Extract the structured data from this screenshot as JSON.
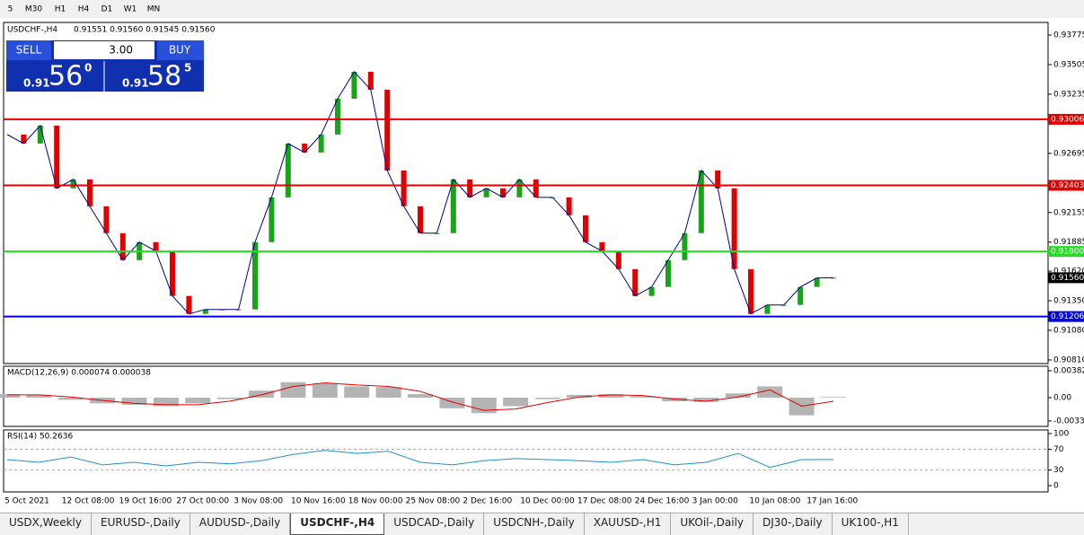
{
  "timeframes": [
    "5",
    "M30",
    "H1",
    "H4",
    "D1",
    "W1",
    "MN"
  ],
  "header": {
    "symbol": "USDCHF-,H4",
    "ohlc": "0.91551 0.91560 0.91545 0.91560"
  },
  "trade_panel": {
    "sell": "SELL",
    "buy": "BUY",
    "volume": "3.00",
    "sell_big": "0.91",
    "sell_main": "56",
    "sell_frac": "0",
    "buy_big": "0.91",
    "buy_main": "58",
    "buy_frac": "5"
  },
  "price_chart": {
    "type": "candlestick-line",
    "ylim": [
      0.90777,
      0.9389
    ],
    "yticks": [
      0.93775,
      0.93505,
      0.93235,
      0.92695,
      0.92155,
      0.91885,
      {
        "value": 0.9162,
        "label": "0.91620"
      },
      {
        "value": 0.9135,
        "label": "0.91350"
      },
      {
        "value": 0.9108,
        "label": "0.91080"
      },
      {
        "value": 0.9081,
        "label": "0.90810"
      }
    ],
    "close": [
      0.92867,
      0.92785,
      0.92949,
      0.92376,
      0.92458,
      0.92212,
      0.91967,
      0.91721,
      0.91885,
      0.91803,
      0.91394,
      0.9123,
      0.91271,
      0.91271,
      0.91271,
      0.91885,
      0.92294,
      0.92785,
      0.92703,
      0.92867,
      0.93194,
      0.9344,
      0.93276,
      0.92539,
      0.92212,
      0.91967,
      0.91967,
      0.92458,
      0.92294,
      0.92376,
      0.92294,
      0.92458,
      0.92294,
      0.92294,
      0.9213,
      0.91885,
      0.91803,
      0.91639,
      0.91394,
      0.91476,
      0.91721,
      0.91967,
      0.92539,
      0.92376,
      0.91639,
      0.9123,
      0.91312,
      0.91312,
      0.91476,
      0.91558,
      0.9156
    ],
    "up_color": "#19a319",
    "down_color": "#e00000",
    "levels": [
      {
        "value": 0.93006,
        "label": "0.93006",
        "color": "#e00000"
      },
      {
        "value": 0.92403,
        "label": "0.92403",
        "color": "#e00000"
      },
      {
        "value": 0.918,
        "label": "0.91800",
        "color": "#22dd22"
      },
      {
        "value": 0.91206,
        "label": "0.91206",
        "color": "#0000e0"
      }
    ],
    "current": {
      "value": 0.9156,
      "label": "0.91560"
    },
    "xlabels": [
      "5 Oct 2021",
      "12 Oct 08:00",
      "19 Oct 16:00",
      "27 Oct 00:00",
      "3 Nov 08:00",
      "10 Nov 16:00",
      "18 Nov 00:00",
      "25 Nov 08:00",
      "2 Dec 16:00",
      "10 Dec 00:00",
      "17 Dec 08:00",
      "24 Dec 16:00",
      "3 Jan 00:00",
      "10 Jan 08:00",
      "17 Jan 16:00"
    ]
  },
  "macd": {
    "title": "MACD(12,26,9) 0.000074 0.000038",
    "ylim": [
      -0.00407,
      0.00446
    ],
    "yticks": [
      0.00382,
      {
        "value": 0,
        "label": "0.00"
      },
      -0.0033
    ],
    "histogram": [
      0.0005,
      0.0004,
      -0.0003,
      -0.0008,
      -0.001,
      -0.0012,
      -0.0008,
      -0.0002,
      0.001,
      0.0022,
      0.002,
      0.0016,
      0.0015,
      0.0005,
      -0.0015,
      -0.0022,
      -0.0012,
      -0.0002,
      0.0004,
      0.0005,
      0.0002,
      -0.0005,
      -0.0006,
      0.0006,
      0.0016,
      -0.0025,
      0.0001
    ],
    "signal": [
      0.0004,
      0.0004,
      0.0001,
      -0.0004,
      -0.0008,
      -0.001,
      -0.001,
      -0.0005,
      0.0004,
      0.0016,
      0.0021,
      0.0018,
      0.0016,
      0.0009,
      -0.0006,
      -0.0018,
      -0.0016,
      -0.0007,
      0.0001,
      0.0004,
      0.0003,
      -0.0002,
      -0.0005,
      0.0001,
      0.0011,
      -0.0012,
      -0.0005
    ],
    "hist_color": "#b4b4b4",
    "signal_color": "#e00000"
  },
  "rsi": {
    "title": "RSI(14) 50.2636",
    "ylim": [
      -12,
      107
    ],
    "yticks": [
      100,
      70,
      30,
      0
    ],
    "levels": [
      70,
      30
    ],
    "values": [
      50,
      45,
      55,
      40,
      45,
      38,
      45,
      42,
      48,
      60,
      68,
      62,
      66,
      45,
      40,
      48,
      52,
      50,
      48,
      45,
      50,
      40,
      45,
      62,
      35,
      50,
      50.2636
    ],
    "color": "#1e90d0"
  },
  "tabs": [
    "USDX,Weekly",
    "EURUSD-,Daily",
    "AUDUSD-,Daily",
    "USDCHF-,H4",
    "USDCAD-,Daily",
    "USDCNH-,Daily",
    "XAUUSD-,H1",
    "UKOil-,Daily",
    "DJ30-,Daily",
    "UK100-,H1"
  ],
  "active_tab": 3
}
